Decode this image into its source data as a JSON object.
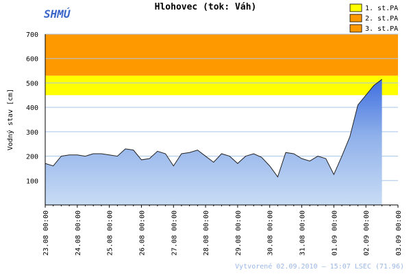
{
  "chart_data": {
    "type": "area",
    "title": "Hlohovec (tok: Váh)",
    "logo": "SHMÚ",
    "ylabel": "Vodný stav [cm]",
    "footer": "Vytvorené 02.09.2010 – 15:07 LSEC (71.96)",
    "ylim": [
      0,
      700
    ],
    "yticks": [
      100,
      200,
      300,
      400,
      500,
      600,
      700
    ],
    "grid": true,
    "thresholds": [
      {
        "name": "1. st.PA",
        "color": "#ffff00",
        "from": 450,
        "to": 530
      },
      {
        "name": "2. st.PA",
        "color": "#ff9900",
        "from": 530,
        "to": 700
      },
      {
        "name": "3. st.PA",
        "color": "#ff9900"
      }
    ],
    "categories": [
      "23.08 00:00",
      null,
      null,
      null,
      "24.08 00:00",
      null,
      null,
      null,
      "25.08 00:00",
      null,
      null,
      null,
      "26.08 00:00",
      null,
      null,
      null,
      "27.08 00:00",
      null,
      null,
      null,
      "28.08 00:00",
      null,
      null,
      null,
      "29.08 00:00",
      null,
      null,
      null,
      "30.08 00:00",
      null,
      null,
      null,
      "31.08 00:00",
      null,
      null,
      null,
      "01.09 00:00",
      null,
      null,
      null,
      "02.09 00:00",
      null,
      null,
      null,
      "03.09 00:00"
    ],
    "series": [
      {
        "color": "#6c9ae8",
        "values": [
          170,
          160,
          200,
          205,
          205,
          200,
          210,
          210,
          205,
          200,
          230,
          225,
          185,
          190,
          220,
          210,
          160,
          210,
          215,
          225,
          200,
          175,
          210,
          200,
          170,
          200,
          210,
          195,
          160,
          115,
          215,
          210,
          190,
          180,
          200,
          190,
          125,
          200,
          280,
          410,
          450,
          490,
          515,
          null,
          null
        ]
      }
    ]
  }
}
